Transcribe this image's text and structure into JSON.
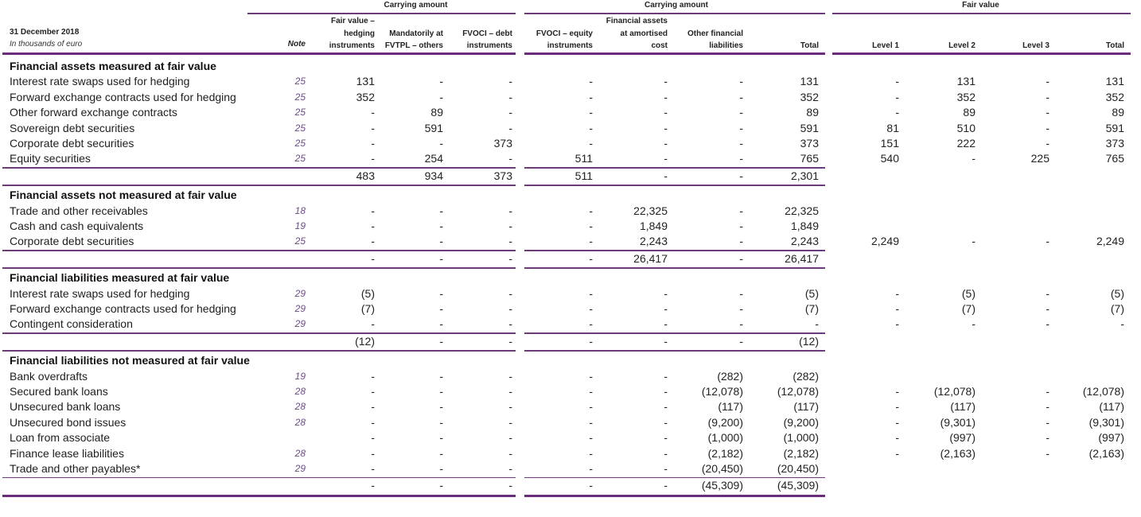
{
  "header": {
    "date": "31 December 2018",
    "units": "In thousands of euro",
    "note_label": "Note",
    "groups": [
      {
        "label": "Carrying amount"
      },
      {
        "label": "Carrying amount"
      },
      {
        "label": "Fair value"
      }
    ],
    "columns": [
      {
        "l1": "Fair value –",
        "l2": "hedging",
        "l3": "instruments"
      },
      {
        "l1": "",
        "l2": "Mandatorily at",
        "l3": "FVTPL – others"
      },
      {
        "l1": "",
        "l2": "FVOCI – debt",
        "l3": "instruments"
      },
      {
        "l1": "",
        "l2": "FVOCI – equity",
        "l3": "instruments"
      },
      {
        "l1": "Financial assets",
        "l2": "at amortised",
        "l3": "cost"
      },
      {
        "l1": "",
        "l2": "Other financial",
        "l3": "liabilities"
      },
      {
        "l1": "",
        "l2": "",
        "l3": "Total"
      },
      {
        "l1": "",
        "l2": "",
        "l3": "Level 1"
      },
      {
        "l1": "",
        "l2": "",
        "l3": "Level 2"
      },
      {
        "l1": "",
        "l2": "",
        "l3": "Level 3"
      },
      {
        "l1": "",
        "l2": "",
        "l3": "Total"
      }
    ]
  },
  "sections": [
    {
      "title": "Financial assets measured at fair value",
      "rows": [
        {
          "label": "Interest rate swaps used for hedging",
          "note": "25",
          "values": [
            "131",
            "-",
            "-",
            "-",
            "-",
            "-",
            "131",
            "-",
            "131",
            "-",
            "131"
          ]
        },
        {
          "label": "Forward exchange contracts used for hedging",
          "note": "25",
          "values": [
            "352",
            "-",
            "-",
            "-",
            "-",
            "-",
            "352",
            "-",
            "352",
            "-",
            "352"
          ]
        },
        {
          "label": "Other forward exchange contracts",
          "note": "25",
          "values": [
            "-",
            "89",
            "-",
            "-",
            "-",
            "-",
            "89",
            "-",
            "89",
            "-",
            "89"
          ]
        },
        {
          "label": "Sovereign debt securities",
          "note": "25",
          "values": [
            "-",
            "591",
            "-",
            "-",
            "-",
            "-",
            "591",
            "81",
            "510",
            "-",
            "591"
          ]
        },
        {
          "label": "Corporate debt securities",
          "note": "25",
          "values": [
            "-",
            "-",
            "373",
            "-",
            "-",
            "-",
            "373",
            "151",
            "222",
            "-",
            "373"
          ]
        },
        {
          "label": "Equity securities",
          "note": "25",
          "values": [
            "-",
            "254",
            "-",
            "511",
            "-",
            "-",
            "765",
            "540",
            "-",
            "225",
            "765"
          ]
        }
      ],
      "total": [
        "483",
        "934",
        "373",
        "511",
        "-",
        "-",
        "2,301"
      ]
    },
    {
      "title": "Financial assets not measured at fair value",
      "rows": [
        {
          "label": "Trade and other receivables",
          "note": "18",
          "values": [
            "-",
            "-",
            "-",
            "-",
            "22,325",
            "-",
            "22,325",
            "",
            "",
            "",
            ""
          ]
        },
        {
          "label": "Cash and cash equivalents",
          "note": "19",
          "values": [
            "-",
            "-",
            "-",
            "-",
            "1,849",
            "-",
            "1,849",
            "",
            "",
            "",
            ""
          ]
        },
        {
          "label": "Corporate debt securities",
          "note": "25",
          "values": [
            "-",
            "-",
            "-",
            "-",
            "2,243",
            "-",
            "2,243",
            "2,249",
            "-",
            "-",
            "2,249"
          ]
        }
      ],
      "total": [
        "-",
        "-",
        "-",
        "-",
        "26,417",
        "-",
        "26,417"
      ]
    },
    {
      "title": "Financial liabilities measured at fair value",
      "rows": [
        {
          "label": "Interest rate swaps used for hedging",
          "note": "29",
          "values": [
            "(5)",
            "-",
            "-",
            "-",
            "-",
            "-",
            "(5)",
            "-",
            "(5)",
            "-",
            "(5)"
          ]
        },
        {
          "label": "Forward exchange contracts used for hedging",
          "note": "29",
          "values": [
            "(7)",
            "-",
            "-",
            "-",
            "-",
            "-",
            "(7)",
            "-",
            "(7)",
            "-",
            "(7)"
          ]
        },
        {
          "label": "Contingent consideration",
          "note": "29",
          "values": [
            "-",
            "-",
            "-",
            "-",
            "-",
            "-",
            "-",
            "-",
            "-",
            "-",
            "-"
          ]
        }
      ],
      "total": [
        "(12)",
        "-",
        "-",
        "-",
        "-",
        "-",
        "(12)"
      ]
    },
    {
      "title": "Financial liabilities not measured at fair value",
      "rows": [
        {
          "label": "Bank overdrafts",
          "note": "19",
          "values": [
            "-",
            "-",
            "-",
            "-",
            "-",
            "(282)",
            "(282)",
            "",
            "",
            "",
            ""
          ]
        },
        {
          "label": "Secured bank loans",
          "note": "28",
          "values": [
            "-",
            "-",
            "-",
            "-",
            "-",
            "(12,078)",
            "(12,078)",
            "-",
            "(12,078)",
            "-",
            "(12,078)"
          ]
        },
        {
          "label": "Unsecured bank loans",
          "note": "28",
          "values": [
            "-",
            "-",
            "-",
            "-",
            "-",
            "(117)",
            "(117)",
            "-",
            "(117)",
            "-",
            "(117)"
          ]
        },
        {
          "label": "Unsecured bond issues",
          "note": "28",
          "values": [
            "-",
            "-",
            "-",
            "-",
            "-",
            "(9,200)",
            "(9,200)",
            "-",
            "(9,301)",
            "-",
            "(9,301)"
          ]
        },
        {
          "label": "Loan from associate",
          "note": "",
          "values": [
            "-",
            "-",
            "-",
            "-",
            "-",
            "(1,000)",
            "(1,000)",
            "-",
            "(997)",
            "-",
            "(997)"
          ]
        },
        {
          "label": "Finance lease liabilities",
          "note": "28",
          "values": [
            "-",
            "-",
            "-",
            "-",
            "-",
            "(2,182)",
            "(2,182)",
            "-",
            "(2,163)",
            "-",
            "(2,163)"
          ]
        },
        {
          "label": "Trade and other payables*",
          "note": "29",
          "values": [
            "-",
            "-",
            "-",
            "-",
            "-",
            "(20,450)",
            "(20,450)",
            "",
            "",
            "",
            ""
          ]
        }
      ],
      "total": [
        "-",
        "-",
        "-",
        "-",
        "-",
        "(45,309)",
        "(45,309)"
      ]
    }
  ],
  "colors": {
    "rule": "#6b3b7a",
    "note_text": "#6b4c86"
  }
}
